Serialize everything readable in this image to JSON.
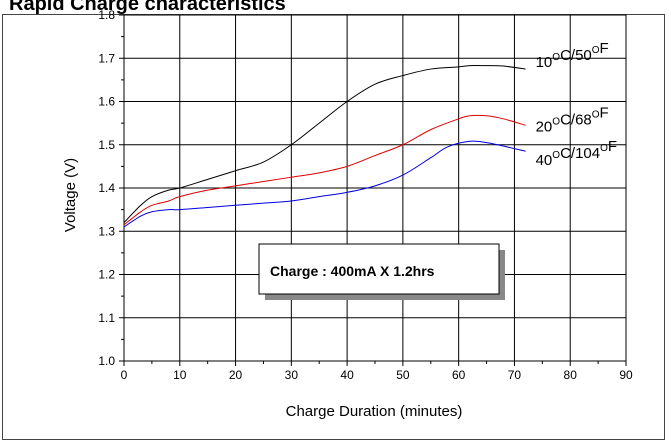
{
  "chart_data": {
    "title": "Rapid Charge characteristics",
    "type": "line",
    "xlabel": "Charge Duration (minutes)",
    "ylabel": "Voltage (V)",
    "xlim": [
      0,
      90
    ],
    "ylim": [
      1.0,
      1.8
    ],
    "xticks": [
      0,
      10,
      20,
      30,
      40,
      50,
      60,
      70,
      80,
      90
    ],
    "yticks": [
      1.0,
      1.1,
      1.2,
      1.3,
      1.4,
      1.5,
      1.6,
      1.7,
      1.8
    ],
    "grid": true,
    "series": [
      {
        "name_base": "10",
        "name_sup1": "O",
        "name_mid": "C/50",
        "name_sup2": "O",
        "name_end": "F",
        "color": "#000000",
        "x": [
          0,
          3,
          5,
          8,
          10,
          15,
          20,
          25,
          30,
          35,
          40,
          45,
          50,
          55,
          60,
          62,
          65,
          68,
          72
        ],
        "y": [
          1.32,
          1.36,
          1.38,
          1.395,
          1.4,
          1.42,
          1.44,
          1.46,
          1.5,
          1.55,
          1.6,
          1.64,
          1.66,
          1.675,
          1.68,
          1.683,
          1.683,
          1.682,
          1.675
        ]
      },
      {
        "name_base": "20",
        "name_sup1": "O",
        "name_mid": "C/68",
        "name_sup2": "O",
        "name_end": "F",
        "color": "#e00000",
        "x": [
          0,
          3,
          5,
          8,
          10,
          15,
          20,
          25,
          30,
          35,
          40,
          45,
          50,
          55,
          60,
          62,
          65,
          68,
          72
        ],
        "y": [
          1.315,
          1.345,
          1.36,
          1.37,
          1.38,
          1.395,
          1.405,
          1.415,
          1.425,
          1.435,
          1.45,
          1.475,
          1.5,
          1.535,
          1.56,
          1.567,
          1.567,
          1.56,
          1.545
        ]
      },
      {
        "name_base": "40",
        "name_sup1": "O",
        "name_mid": "C/104",
        "name_sup2": "O",
        "name_end": "F",
        "color": "#0000e0",
        "x": [
          0,
          3,
          5,
          8,
          10,
          15,
          20,
          25,
          30,
          35,
          40,
          45,
          50,
          55,
          58,
          62,
          65,
          68,
          72
        ],
        "y": [
          1.31,
          1.335,
          1.345,
          1.35,
          1.35,
          1.355,
          1.36,
          1.365,
          1.37,
          1.38,
          1.39,
          1.405,
          1.43,
          1.47,
          1.495,
          1.508,
          1.505,
          1.497,
          1.485
        ]
      }
    ],
    "annotation": "Charge : 400mA X 1.2hrs"
  }
}
